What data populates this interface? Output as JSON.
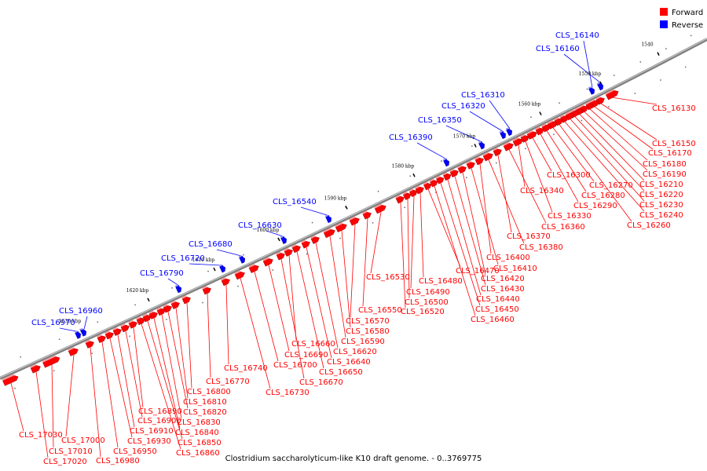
{
  "caption": "Clostridium saccharolyticum-like K10 draft genome. - 0..3769775",
  "legend": [
    {
      "label": "Forward",
      "color": "#ff0000"
    },
    {
      "label": "Reverse",
      "color": "#0000ff"
    }
  ],
  "colors": {
    "forward": "#ff0000",
    "reverse": "#0000ff",
    "backbone": "#808080"
  },
  "ticks": [
    "1540",
    "1550 kbp",
    "1560 kbp",
    "1570 kbp",
    "1580 kbp",
    "1590 kbp",
    "1600 kbp",
    "1610 kbp",
    "1620 kbp",
    "1630 kbp"
  ],
  "genes": [
    {
      "name": "CLS_16130",
      "strand": "forward"
    },
    {
      "name": "CLS_16140",
      "strand": "reverse"
    },
    {
      "name": "CLS_16150",
      "strand": "forward"
    },
    {
      "name": "CLS_16160",
      "strand": "reverse"
    },
    {
      "name": "CLS_16170",
      "strand": "forward"
    },
    {
      "name": "CLS_16180",
      "strand": "forward"
    },
    {
      "name": "CLS_16190",
      "strand": "forward"
    },
    {
      "name": "CLS_16210",
      "strand": "forward"
    },
    {
      "name": "CLS_16220",
      "strand": "forward"
    },
    {
      "name": "CLS_16230",
      "strand": "forward"
    },
    {
      "name": "CLS_16240",
      "strand": "forward"
    },
    {
      "name": "CLS_16260",
      "strand": "forward"
    },
    {
      "name": "CLS_16270",
      "strand": "forward"
    },
    {
      "name": "CLS_16280",
      "strand": "forward"
    },
    {
      "name": "CLS_16290",
      "strand": "forward"
    },
    {
      "name": "CLS_16300",
      "strand": "forward"
    },
    {
      "name": "CLS_16310",
      "strand": "reverse"
    },
    {
      "name": "CLS_16320",
      "strand": "reverse"
    },
    {
      "name": "CLS_16330",
      "strand": "forward"
    },
    {
      "name": "CLS_16340",
      "strand": "forward"
    },
    {
      "name": "CLS_16350",
      "strand": "reverse"
    },
    {
      "name": "CLS_16360",
      "strand": "forward"
    },
    {
      "name": "CLS_16370",
      "strand": "forward"
    },
    {
      "name": "CLS_16380",
      "strand": "forward"
    },
    {
      "name": "CLS_16390",
      "strand": "reverse"
    },
    {
      "name": "CLS_16400",
      "strand": "forward"
    },
    {
      "name": "CLS_16410",
      "strand": "forward"
    },
    {
      "name": "CLS_16420",
      "strand": "forward"
    },
    {
      "name": "CLS_16430",
      "strand": "forward"
    },
    {
      "name": "CLS_16440",
      "strand": "forward"
    },
    {
      "name": "CLS_16450",
      "strand": "forward"
    },
    {
      "name": "CLS_16460",
      "strand": "forward"
    },
    {
      "name": "CLS_16470",
      "strand": "forward"
    },
    {
      "name": "CLS_16480",
      "strand": "forward"
    },
    {
      "name": "CLS_16490",
      "strand": "forward"
    },
    {
      "name": "CLS_16500",
      "strand": "forward"
    },
    {
      "name": "CLS_16520",
      "strand": "forward"
    },
    {
      "name": "CLS_16530",
      "strand": "forward"
    },
    {
      "name": "CLS_16540",
      "strand": "reverse"
    },
    {
      "name": "CLS_16550",
      "strand": "forward"
    },
    {
      "name": "CLS_16570",
      "strand": "forward"
    },
    {
      "name": "CLS_16580",
      "strand": "forward"
    },
    {
      "name": "CLS_16590",
      "strand": "forward"
    },
    {
      "name": "CLS_16620",
      "strand": "forward"
    },
    {
      "name": "CLS_16630",
      "strand": "reverse"
    },
    {
      "name": "CLS_16640",
      "strand": "forward"
    },
    {
      "name": "CLS_16650",
      "strand": "forward"
    },
    {
      "name": "CLS_16660",
      "strand": "forward"
    },
    {
      "name": "CLS_16670",
      "strand": "forward"
    },
    {
      "name": "CLS_16680",
      "strand": "reverse"
    },
    {
      "name": "CLS_16690",
      "strand": "forward"
    },
    {
      "name": "CLS_16700",
      "strand": "forward"
    },
    {
      "name": "CLS_16720",
      "strand": "reverse"
    },
    {
      "name": "CLS_16730",
      "strand": "forward"
    },
    {
      "name": "CLS_16740",
      "strand": "forward"
    },
    {
      "name": "CLS_16770",
      "strand": "forward"
    },
    {
      "name": "CLS_16790",
      "strand": "reverse"
    },
    {
      "name": "CLS_16800",
      "strand": "forward"
    },
    {
      "name": "CLS_16810",
      "strand": "forward"
    },
    {
      "name": "CLS_16820",
      "strand": "forward"
    },
    {
      "name": "CLS_16830",
      "strand": "forward"
    },
    {
      "name": "CLS_16840",
      "strand": "forward"
    },
    {
      "name": "CLS_16850",
      "strand": "forward"
    },
    {
      "name": "CLS_16860",
      "strand": "forward"
    },
    {
      "name": "CLS_16890",
      "strand": "forward"
    },
    {
      "name": "CLS_16900",
      "strand": "forward"
    },
    {
      "name": "CLS_16910",
      "strand": "forward"
    },
    {
      "name": "CLS_16930",
      "strand": "forward"
    },
    {
      "name": "CLS_16950",
      "strand": "forward"
    },
    {
      "name": "CLS_16960",
      "strand": "reverse"
    },
    {
      "name": "CLS_16970",
      "strand": "reverse"
    },
    {
      "name": "CLS_16980",
      "strand": "forward"
    },
    {
      "name": "CLS_17000",
      "strand": "forward"
    },
    {
      "name": "CLS_17010",
      "strand": "forward"
    },
    {
      "name": "CLS_17020",
      "strand": "forward"
    },
    {
      "name": "CLS_17030",
      "strand": "forward"
    }
  ]
}
